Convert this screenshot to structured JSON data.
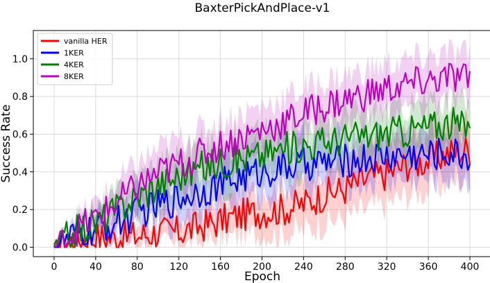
{
  "chart_data": {
    "type": "line",
    "title": "BaxterPickAndPlace-v1",
    "xlabel": "Epoch",
    "ylabel": "Success Rate",
    "xlim": [
      -20,
      420
    ],
    "ylim": [
      -0.05,
      1.15
    ],
    "xticks": [
      0,
      40,
      80,
      120,
      160,
      200,
      240,
      280,
      320,
      360,
      400
    ],
    "yticks": [
      0.0,
      0.2,
      0.4,
      0.6,
      0.8,
      1.0
    ],
    "xtick_labels": [
      "0",
      "40",
      "80",
      "120",
      "160",
      "200",
      "240",
      "280",
      "320",
      "360",
      "400"
    ],
    "ytick_labels": [
      "0.0",
      "0.2",
      "0.4",
      "0.6",
      "0.8",
      "1.0"
    ],
    "grid": true,
    "legend_position": "top-left",
    "shaded_band": "variance band around each series",
    "series": [
      {
        "name": "vanilla HER",
        "color": "#ff0000",
        "x": [
          0,
          20,
          40,
          60,
          80,
          100,
          120,
          140,
          160,
          180,
          200,
          220,
          240,
          260,
          280,
          300,
          320,
          340,
          360,
          380,
          400
        ],
        "y": [
          0.0,
          0.04,
          0.05,
          0.05,
          0.06,
          0.08,
          0.08,
          0.11,
          0.14,
          0.17,
          0.19,
          0.2,
          0.23,
          0.28,
          0.31,
          0.36,
          0.39,
          0.44,
          0.46,
          0.5,
          0.52
        ],
        "band": [
          0.0,
          0.03,
          0.04,
          0.05,
          0.06,
          0.07,
          0.08,
          0.09,
          0.1,
          0.11,
          0.12,
          0.13,
          0.14,
          0.15,
          0.15,
          0.16,
          0.16,
          0.16,
          0.16,
          0.16,
          0.16
        ]
      },
      {
        "name": "1KER",
        "color": "#0000ff",
        "x": [
          0,
          20,
          40,
          60,
          80,
          100,
          120,
          140,
          160,
          180,
          200,
          220,
          240,
          260,
          280,
          300,
          320,
          340,
          360,
          380,
          400
        ],
        "y": [
          0.0,
          0.06,
          0.09,
          0.13,
          0.18,
          0.22,
          0.26,
          0.3,
          0.33,
          0.37,
          0.4,
          0.42,
          0.44,
          0.45,
          0.46,
          0.47,
          0.48,
          0.49,
          0.49,
          0.5,
          0.48
        ],
        "band": [
          0.0,
          0.04,
          0.06,
          0.08,
          0.1,
          0.11,
          0.12,
          0.12,
          0.13,
          0.13,
          0.13,
          0.13,
          0.13,
          0.13,
          0.13,
          0.13,
          0.13,
          0.13,
          0.13,
          0.13,
          0.13
        ]
      },
      {
        "name": "4KER",
        "color": "#008000",
        "x": [
          0,
          20,
          40,
          60,
          80,
          100,
          120,
          140,
          160,
          180,
          200,
          220,
          240,
          260,
          280,
          300,
          320,
          340,
          360,
          380,
          400
        ],
        "y": [
          0.0,
          0.08,
          0.13,
          0.2,
          0.27,
          0.33,
          0.38,
          0.42,
          0.45,
          0.47,
          0.49,
          0.52,
          0.54,
          0.56,
          0.58,
          0.59,
          0.61,
          0.62,
          0.64,
          0.66,
          0.63
        ],
        "band": [
          0.0,
          0.05,
          0.07,
          0.09,
          0.11,
          0.12,
          0.13,
          0.13,
          0.13,
          0.13,
          0.13,
          0.13,
          0.13,
          0.13,
          0.13,
          0.13,
          0.13,
          0.13,
          0.13,
          0.13,
          0.13
        ]
      },
      {
        "name": "8KER",
        "color": "#bf00bf",
        "x": [
          0,
          20,
          40,
          60,
          80,
          100,
          120,
          140,
          160,
          180,
          200,
          220,
          240,
          260,
          280,
          300,
          320,
          340,
          360,
          380,
          400
        ],
        "y": [
          0.0,
          0.09,
          0.15,
          0.23,
          0.32,
          0.39,
          0.44,
          0.49,
          0.54,
          0.58,
          0.62,
          0.66,
          0.71,
          0.75,
          0.78,
          0.81,
          0.84,
          0.86,
          0.88,
          0.9,
          0.89
        ],
        "band": [
          0.0,
          0.05,
          0.08,
          0.1,
          0.12,
          0.13,
          0.13,
          0.13,
          0.13,
          0.13,
          0.13,
          0.13,
          0.13,
          0.13,
          0.13,
          0.13,
          0.13,
          0.13,
          0.13,
          0.13,
          0.13
        ]
      }
    ]
  }
}
